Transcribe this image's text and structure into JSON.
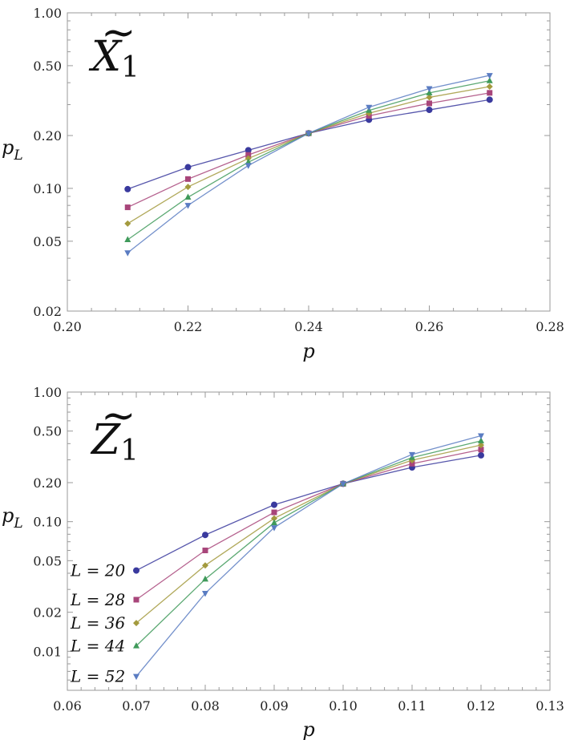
{
  "chart_data": [
    {
      "type": "line",
      "title": "X̃₁",
      "title_main": "X",
      "title_sub": "1",
      "title_accent": "~",
      "xlabel": "p",
      "ylabel_main": "p",
      "ylabel_sub": "L",
      "yscale": "log",
      "xlim": [
        0.2,
        0.28
      ],
      "ylim": [
        0.02,
        1.0
      ],
      "x_ticks": [
        "0.20",
        "0.22",
        "0.24",
        "0.26",
        "0.28"
      ],
      "x_tick_values": [
        0.2,
        0.22,
        0.24,
        0.26,
        0.28
      ],
      "y_ticks": [
        "0.02",
        "0.05",
        "0.10",
        "0.20",
        "0.50",
        "1.00"
      ],
      "y_tick_values": [
        0.02,
        0.05,
        0.1,
        0.2,
        0.5,
        1.0
      ],
      "x": [
        0.21,
        0.22,
        0.23,
        0.24,
        0.25,
        0.26,
        0.27
      ],
      "series": [
        {
          "name": "L = 20",
          "marker": "circle",
          "color": "#3a3a9e",
          "values": [
            0.099,
            0.132,
            0.165,
            0.206,
            0.246,
            0.28,
            0.32
          ]
        },
        {
          "name": "L = 28",
          "marker": "square",
          "color": "#a8457a",
          "values": [
            0.078,
            0.113,
            0.155,
            0.206,
            0.259,
            0.305,
            0.35
          ]
        },
        {
          "name": "L = 36",
          "marker": "diamond",
          "color": "#a39a3e",
          "values": [
            0.063,
            0.102,
            0.148,
            0.206,
            0.268,
            0.33,
            0.38
          ]
        },
        {
          "name": "L = 44",
          "marker": "triangle-up",
          "color": "#3f9a5a",
          "values": [
            0.051,
            0.089,
            0.141,
            0.206,
            0.278,
            0.35,
            0.41
          ]
        },
        {
          "name": "L = 52",
          "marker": "triangle-down",
          "color": "#5a7cc2",
          "values": [
            0.043,
            0.08,
            0.135,
            0.206,
            0.29,
            0.37,
            0.44
          ]
        }
      ]
    },
    {
      "type": "line",
      "title": "Z̃₁",
      "title_main": "Z",
      "title_sub": "1",
      "title_accent": "~",
      "xlabel": "p",
      "ylabel_main": "p",
      "ylabel_sub": "L",
      "yscale": "log",
      "xlim": [
        0.06,
        0.13
      ],
      "ylim": [
        0.005,
        1.0
      ],
      "x_ticks": [
        "0.06",
        "0.07",
        "0.08",
        "0.09",
        "0.10",
        "0.11",
        "0.12",
        "0.13"
      ],
      "x_tick_values": [
        0.06,
        0.07,
        0.08,
        0.09,
        0.1,
        0.11,
        0.12,
        0.13
      ],
      "y_ticks": [
        "0.01",
        "0.02",
        "0.05",
        "0.10",
        "0.20",
        "0.50",
        "1.00"
      ],
      "y_tick_values": [
        0.01,
        0.02,
        0.05,
        0.1,
        0.2,
        0.5,
        1.0
      ],
      "x": [
        0.07,
        0.08,
        0.09,
        0.1,
        0.11,
        0.12
      ],
      "legend": [
        "L = 20",
        "L = 28",
        "L = 36",
        "L = 44",
        "L = 52"
      ],
      "series": [
        {
          "name": "L = 20",
          "marker": "circle",
          "color": "#3a3a9e",
          "values": [
            0.042,
            0.079,
            0.135,
            0.196,
            0.262,
            0.325
          ]
        },
        {
          "name": "L = 28",
          "marker": "square",
          "color": "#a8457a",
          "values": [
            0.025,
            0.06,
            0.118,
            0.196,
            0.28,
            0.36
          ]
        },
        {
          "name": "L = 36",
          "marker": "diamond",
          "color": "#a39a3e",
          "values": [
            0.0165,
            0.046,
            0.106,
            0.196,
            0.298,
            0.39
          ]
        },
        {
          "name": "L = 44",
          "marker": "triangle-up",
          "color": "#3f9a5a",
          "values": [
            0.011,
            0.036,
            0.098,
            0.196,
            0.312,
            0.42
          ]
        },
        {
          "name": "L = 52",
          "marker": "triangle-down",
          "color": "#5a7cc2",
          "values": [
            0.0064,
            0.028,
            0.09,
            0.196,
            0.33,
            0.46
          ]
        }
      ]
    }
  ]
}
